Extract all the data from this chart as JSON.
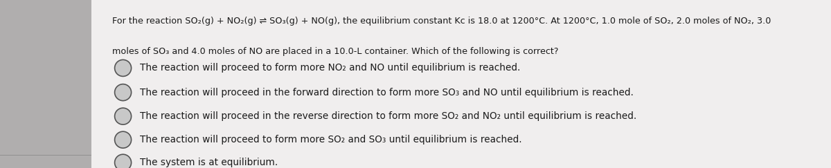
{
  "bg_color": "#b0aeae",
  "panel_color": "#f0eeee",
  "title_line1": "For the reaction SO₂(g) + NO₂(g) ⇌ SO₃(g) + NO(g), the equilibrium constant Kc is 18.0 at 1200°C. At 1200°C, 1.0 mole of SO₂, 2.0 moles of NO₂, 3.0",
  "title_line2": "moles of SO₃ and 4.0 moles of NO are placed in a 10.0-L container. Which of the following is correct?",
  "options": [
    "The reaction will proceed to form more NO₂ and NO until equilibrium is reached.",
    "The reaction will proceed in the forward direction to form more SO₃ and NO until equilibrium is reached.",
    "The reaction will proceed in the reverse direction to form more SO₂ and NO₂ until equilibrium is reached.",
    "The reaction will proceed to form more SO₂ and SO₃ until equilibrium is reached.",
    "The system is at equilibrium."
  ],
  "circle_color": "#555555",
  "circle_fill": "#c8c8c8",
  "text_color": "#1a1a1a",
  "font_size_title": 9.2,
  "font_size_options": 9.8
}
